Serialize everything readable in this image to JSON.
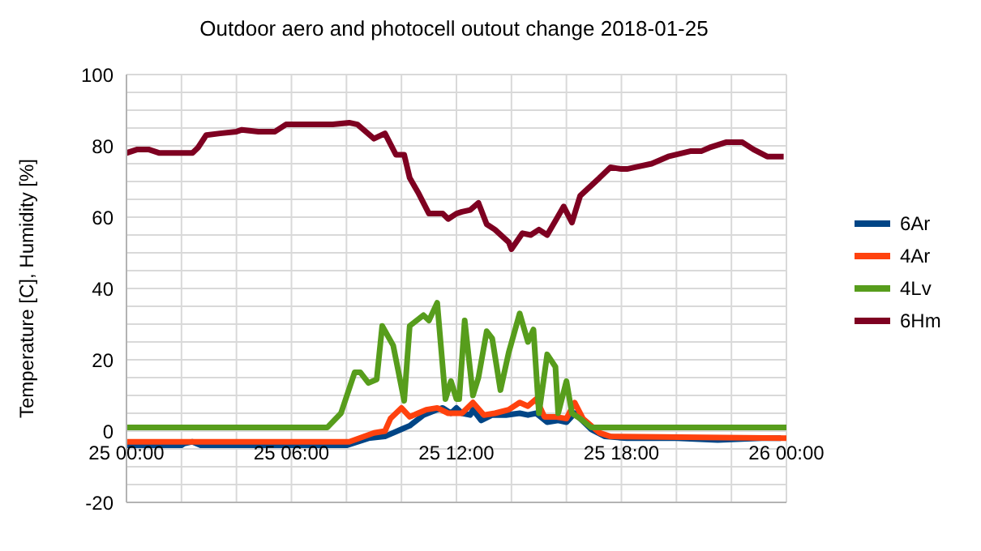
{
  "chart_data": {
    "type": "line",
    "title": "Outdoor aero and photocell outout change 2018-01-25",
    "ylabel": "Temperature [C], Humidity [%]",
    "xlim": [
      "2018-01-25T00:00",
      "2018-01-26T00:00"
    ],
    "xticks": [
      {
        "value": "2018-01-25T00:00",
        "label": "25 00:00"
      },
      {
        "value": "2018-01-25T02:00",
        "label": null
      },
      {
        "value": "2018-01-25T04:00",
        "label": null
      },
      {
        "value": "2018-01-25T06:00",
        "label": "25 06:00"
      },
      {
        "value": "2018-01-25T08:00",
        "label": null
      },
      {
        "value": "2018-01-25T10:00",
        "label": null
      },
      {
        "value": "2018-01-25T12:00",
        "label": "25 12:00"
      },
      {
        "value": "2018-01-25T14:00",
        "label": null
      },
      {
        "value": "2018-01-25T16:00",
        "label": null
      },
      {
        "value": "2018-01-25T18:00",
        "label": "25 18:00"
      },
      {
        "value": "2018-01-25T20:00",
        "label": null
      },
      {
        "value": "2018-01-25T22:00",
        "label": null
      },
      {
        "value": "2018-01-26T00:00",
        "label": "26 00:00"
      }
    ],
    "ylim": [
      -20,
      100
    ],
    "yticks": [
      -20,
      {
        "value": -15,
        "label": null
      },
      {
        "value": -10,
        "label": null
      },
      {
        "value": -5,
        "label": null
      },
      0,
      {
        "value": 5,
        "label": null
      },
      {
        "value": 10,
        "label": null
      },
      {
        "value": 15,
        "label": null
      },
      20,
      {
        "value": 25,
        "label": null
      },
      {
        "value": 30,
        "label": null
      },
      {
        "value": 35,
        "label": null
      },
      40,
      {
        "value": 45,
        "label": null
      },
      {
        "value": 50,
        "label": null
      },
      {
        "value": 55,
        "label": null
      },
      60,
      {
        "value": 65,
        "label": null
      },
      {
        "value": 70,
        "label": null
      },
      {
        "value": 75,
        "label": null
      },
      80,
      {
        "value": 85,
        "label": null
      },
      {
        "value": 90,
        "label": null
      },
      {
        "value": 95,
        "label": null
      },
      100
    ],
    "grid": true,
    "legend": "right",
    "marker": "none",
    "line_style": "solid",
    "series": [
      {
        "name": "6Ar",
        "color": "#004586",
        "x": [
          "2018-01-25T00:00",
          "2018-01-25T02:00",
          "2018-01-25T02:06",
          "2018-01-25T02:24",
          "2018-01-25T02:42",
          "2018-01-25T08:00",
          "2018-01-25T08:48",
          "2018-01-25T09:24",
          "2018-01-25T10:00",
          "2018-01-25T10:18",
          "2018-01-25T10:48",
          "2018-01-25T11:18",
          "2018-01-25T11:30",
          "2018-01-25T11:48",
          "2018-01-25T12:00",
          "2018-01-25T12:12",
          "2018-01-25T12:30",
          "2018-01-25T12:36",
          "2018-01-25T12:54",
          "2018-01-25T13:18",
          "2018-01-25T13:48",
          "2018-01-25T14:18",
          "2018-01-25T14:36",
          "2018-01-25T14:54",
          "2018-01-25T15:18",
          "2018-01-25T15:42",
          "2018-01-25T16:00",
          "2018-01-25T16:18",
          "2018-01-25T16:54",
          "2018-01-25T17:24",
          "2018-01-25T18:12",
          "2018-01-25T20:00",
          "2018-01-25T21:30",
          "2018-01-25T23:06",
          "2018-01-25T23:48"
        ],
        "values": [
          -4,
          -4,
          -3.5,
          -3,
          -4,
          -4,
          -2,
          -1.5,
          0.5,
          1.5,
          4.5,
          6,
          6.5,
          5,
          6.5,
          5,
          4.5,
          6,
          3,
          4.5,
          4.5,
          5,
          4.5,
          5,
          2.5,
          3,
          2.5,
          5,
          0.5,
          -1.5,
          -2,
          -2,
          -2.5,
          -2,
          -2
        ]
      },
      {
        "name": "4Ar",
        "color": "#ff420e",
        "x": [
          "2018-01-25T00:00",
          "2018-01-25T08:06",
          "2018-01-25T09:00",
          "2018-01-25T09:24",
          "2018-01-25T09:36",
          "2018-01-25T10:00",
          "2018-01-25T10:18",
          "2018-01-25T10:36",
          "2018-01-25T10:54",
          "2018-01-25T11:18",
          "2018-01-25T11:42",
          "2018-01-25T12:12",
          "2018-01-25T12:36",
          "2018-01-25T13:00",
          "2018-01-25T13:24",
          "2018-01-25T13:54",
          "2018-01-25T14:18",
          "2018-01-25T14:36",
          "2018-01-25T14:54",
          "2018-01-25T15:12",
          "2018-01-25T15:36",
          "2018-01-25T16:00",
          "2018-01-25T16:18",
          "2018-01-25T16:36",
          "2018-01-25T17:12",
          "2018-01-25T17:36",
          "2018-01-26T00:00"
        ],
        "values": [
          -3,
          -3,
          -0.5,
          0,
          3.5,
          6.5,
          4,
          5,
          6,
          6.5,
          5,
          5,
          8,
          4.5,
          5,
          6,
          8,
          7,
          9,
          4,
          4,
          3.5,
          8,
          3.5,
          -0.5,
          -1.5,
          -2
        ]
      },
      {
        "name": "4Lv",
        "color": "#579d1c",
        "x": [
          "2018-01-25T00:00",
          "2018-01-25T07:18",
          "2018-01-25T07:48",
          "2018-01-25T08:18",
          "2018-01-25T08:30",
          "2018-01-25T08:48",
          "2018-01-25T09:06",
          "2018-01-25T09:18",
          "2018-01-25T09:42",
          "2018-01-25T10:06",
          "2018-01-25T10:18",
          "2018-01-25T10:48",
          "2018-01-25T11:00",
          "2018-01-25T11:18",
          "2018-01-25T11:36",
          "2018-01-25T11:48",
          "2018-01-25T12:00",
          "2018-01-25T12:06",
          "2018-01-25T12:18",
          "2018-01-25T12:36",
          "2018-01-25T12:48",
          "2018-01-25T13:06",
          "2018-01-25T13:18",
          "2018-01-25T13:36",
          "2018-01-25T13:54",
          "2018-01-25T14:18",
          "2018-01-25T14:36",
          "2018-01-25T14:48",
          "2018-01-25T15:00",
          "2018-01-25T15:18",
          "2018-01-25T15:36",
          "2018-01-25T15:42",
          "2018-01-25T16:00",
          "2018-01-25T16:12",
          "2018-01-25T16:30",
          "2018-01-25T16:54",
          "2018-01-26T00:00"
        ],
        "values": [
          1,
          1,
          5,
          16.5,
          16.5,
          13.5,
          14.5,
          29.5,
          24,
          8.5,
          29.5,
          32.5,
          31,
          36,
          9,
          14,
          9,
          9,
          31,
          10,
          15,
          28,
          26,
          11.5,
          22,
          33,
          25,
          28.5,
          5,
          21.5,
          18,
          5,
          14,
          5,
          3.5,
          1,
          1
        ]
      },
      {
        "name": "6Hm",
        "color": "#7e0021",
        "x": [
          "2018-01-25T00:00",
          "2018-01-25T00:24",
          "2018-01-25T00:48",
          "2018-01-25T01:12",
          "2018-01-25T01:36",
          "2018-01-25T02:00",
          "2018-01-25T02:24",
          "2018-01-25T02:36",
          "2018-01-25T02:54",
          "2018-01-25T03:24",
          "2018-01-25T04:00",
          "2018-01-25T04:12",
          "2018-01-25T04:48",
          "2018-01-25T05:24",
          "2018-01-25T05:48",
          "2018-01-25T06:18",
          "2018-01-25T06:54",
          "2018-01-25T07:30",
          "2018-01-25T08:06",
          "2018-01-25T08:24",
          "2018-01-25T09:00",
          "2018-01-25T09:24",
          "2018-01-25T09:48",
          "2018-01-25T10:06",
          "2018-01-25T10:18",
          "2018-01-25T10:36",
          "2018-01-25T11:00",
          "2018-01-25T11:30",
          "2018-01-25T11:42",
          "2018-01-25T12:00",
          "2018-01-25T12:12",
          "2018-01-25T12:30",
          "2018-01-25T12:48",
          "2018-01-25T13:06",
          "2018-01-25T13:24",
          "2018-01-25T13:54",
          "2018-01-25T14:00",
          "2018-01-25T14:24",
          "2018-01-25T14:42",
          "2018-01-25T15:00",
          "2018-01-25T15:18",
          "2018-01-25T15:36",
          "2018-01-25T15:54",
          "2018-01-25T16:12",
          "2018-01-25T16:30",
          "2018-01-25T17:12",
          "2018-01-25T17:36",
          "2018-01-25T18:00",
          "2018-01-25T18:12",
          "2018-01-25T18:30",
          "2018-01-25T19:06",
          "2018-01-25T19:42",
          "2018-01-25T20:30",
          "2018-01-25T20:54",
          "2018-01-25T21:12",
          "2018-01-25T21:48",
          "2018-01-25T22:24",
          "2018-01-25T22:48",
          "2018-01-25T23:18",
          "2018-01-25T23:54"
        ],
        "values": [
          78,
          79,
          79,
          78,
          78,
          78,
          78,
          79.5,
          83,
          83.5,
          84,
          84.5,
          84,
          84,
          86,
          86,
          86,
          86,
          86.5,
          86,
          82,
          83.5,
          77.5,
          77.5,
          71,
          67,
          61,
          61,
          59.5,
          61,
          61.5,
          62,
          64,
          58,
          56.5,
          53,
          51,
          55.5,
          55,
          56.5,
          55,
          59,
          63,
          58.5,
          66,
          71,
          74,
          73.5,
          73.5,
          74,
          75,
          77,
          78.5,
          78.5,
          79.5,
          81,
          81,
          79,
          77,
          77
        ]
      }
    ]
  }
}
